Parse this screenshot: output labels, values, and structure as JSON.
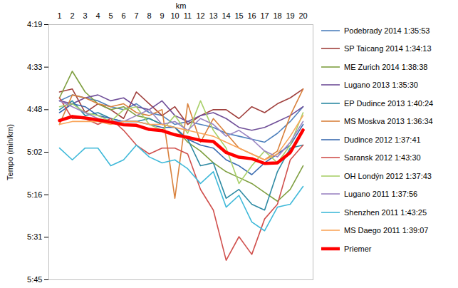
{
  "chart_data": {
    "type": "line",
    "x_label": "km",
    "y_label": "Tempo (min/km)",
    "categories": [
      "1",
      "2",
      "3",
      "4",
      "5",
      "6",
      "7",
      "8",
      "9",
      "10",
      "11",
      "12",
      "13",
      "14",
      "15",
      "16",
      "17",
      "18",
      "19",
      "20"
    ],
    "ylim": [
      345.6,
      259.2
    ],
    "yticks": [
      {
        "value": 259.2,
        "label": "4:19"
      },
      {
        "value": 273.6,
        "label": "4:33"
      },
      {
        "value": 288,
        "label": "4:48"
      },
      {
        "value": 302.4,
        "label": "5:02"
      },
      {
        "value": 316.8,
        "label": "5:16"
      },
      {
        "value": 331.2,
        "label": "5:31"
      },
      {
        "value": 345.6,
        "label": "5:45"
      }
    ],
    "grid": false,
    "legend": "right",
    "series": [
      {
        "name": "Podebrady 2014 1:35:53",
        "color": "#4F81BD",
        "values": [
          285,
          283,
          284,
          285,
          287,
          288,
          286,
          289,
          290,
          293,
          292,
          293,
          294,
          296,
          297,
          298,
          299,
          296,
          292,
          287
        ]
      },
      {
        "name": "SP Taicang 2014 1:34:13",
        "color": "#A0403D",
        "values": [
          282,
          281,
          289,
          286,
          288,
          291,
          282,
          286,
          290,
          287,
          293,
          290,
          288,
          288,
          291,
          287,
          289,
          286,
          284,
          281
        ]
      },
      {
        "name": "ME Zurich 2014 1:38:38",
        "color": "#7F9F40",
        "values": [
          284,
          275,
          282,
          286,
          288,
          287,
          290,
          291,
          293,
          294,
          299,
          302,
          306,
          309,
          311,
          313,
          316,
          319,
          315,
          307
        ]
      },
      {
        "name": "Lugano 2013 1:35:30",
        "color": "#6F4E98",
        "values": [
          285,
          286,
          284,
          283,
          285,
          284,
          287,
          288,
          285,
          290,
          292,
          290,
          289,
          291,
          294,
          295,
          294,
          292,
          290,
          287
        ]
      },
      {
        "name": "EP Dudince 2013 1:40:24",
        "color": "#2E8AA3",
        "values": [
          288,
          285,
          290,
          289,
          291,
          292,
          292,
          291,
          293,
          294,
          298,
          307,
          306,
          318,
          315,
          320,
          322,
          309,
          301,
          300
        ]
      },
      {
        "name": "MS Moskva 2013 1:36:34",
        "color": "#D9813C",
        "values": [
          293,
          283,
          284,
          286,
          287,
          286,
          289,
          290,
          288,
          318,
          286,
          299,
          291,
          296,
          301,
          303,
          305,
          302,
          290,
          281
        ]
      },
      {
        "name": "Dudince 2012 1:37:41",
        "color": "#3A6BB0",
        "values": [
          289,
          286,
          287,
          290,
          291,
          292,
          292,
          293,
          294,
          294,
          298,
          300,
          301,
          305,
          307,
          310,
          306,
          303,
          300,
          293
        ]
      },
      {
        "name": "Saransk 2012 1:43:30",
        "color": "#D0504D",
        "values": [
          284,
          291,
          291,
          293,
          291,
          295,
          300,
          303,
          301,
          301,
          303,
          315,
          322,
          339,
          331,
          337,
          325,
          320,
          305,
          300
        ]
      },
      {
        "name": "OH Londýn 2012 1:37:43",
        "color": "#A9D06A",
        "values": [
          287,
          286,
          289,
          290,
          292,
          288,
          287,
          293,
          295,
          290,
          296,
          285,
          295,
          301,
          313,
          307,
          302,
          306,
          300,
          289
        ]
      },
      {
        "name": "Lugano 2011 1:37:56",
        "color": "#9B85C2",
        "values": [
          285,
          287,
          289,
          291,
          292,
          292,
          290,
          288,
          293,
          292,
          295,
          291,
          293,
          297,
          295,
          298,
          302,
          304,
          299,
          292
        ]
      },
      {
        "name": "Shenzhen 2011 1:43:25",
        "color": "#3FB9D9",
        "values": [
          301,
          305,
          301,
          301,
          307,
          305,
          300,
          304,
          306,
          305,
          308,
          313,
          309,
          321,
          317,
          326,
          329,
          321,
          320,
          314
        ]
      },
      {
        "name": "MS Daego 2011 1:39:07",
        "color": "#FAA55A",
        "values": [
          293,
          292,
          292,
          292,
          293,
          292,
          292,
          293,
          293,
          294,
          295,
          296,
          297,
          299,
          301,
          303,
          305,
          303,
          297,
          290
        ]
      },
      {
        "name": "Priemer",
        "color": "#FF0000",
        "line_style": "thick",
        "values": [
          291.7,
          290.3,
          290.8,
          291.5,
          292.2,
          293.1,
          293.3,
          294.7,
          295.1,
          296.5,
          297.4,
          298.4,
          298.8,
          302.5,
          304.1,
          304.6,
          306.2,
          306,
          302.5,
          294.9
        ]
      }
    ]
  }
}
